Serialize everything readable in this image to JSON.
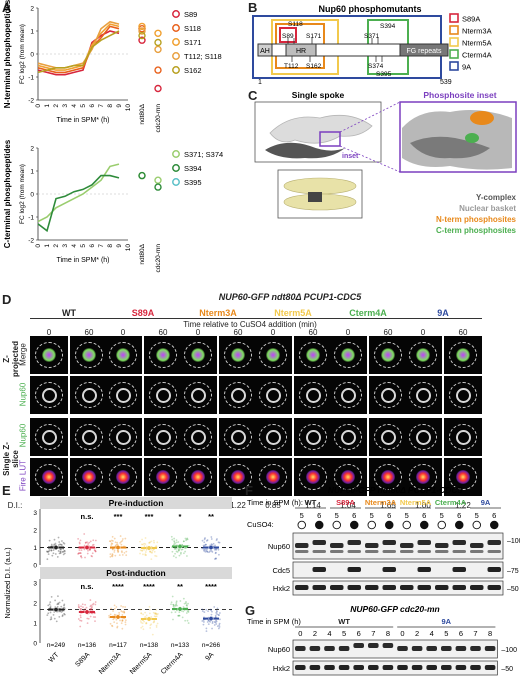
{
  "panels": {
    "A": "A",
    "B": "B",
    "C": "C",
    "D": "D",
    "E": "E",
    "F": "F",
    "G": "G"
  },
  "colors": {
    "wt": "#222222",
    "s89a": "#d7263d",
    "nterm3a": "#e8891b",
    "nterm5a": "#f2c94c",
    "cterm4a": "#4caf50",
    "a9": "#2e4a9e",
    "nuclear": "#8f8f8f"
  },
  "chart_data": [
    {
      "type": "line",
      "panel": "A-top",
      "ylabel": "FC log2 (from mean)",
      "side_label": "N-terminal phosphopeptides",
      "xlabel": "Time in SPM* (h)",
      "categories": [
        "0",
        "1",
        "2",
        "3",
        "4",
        "5",
        "6",
        "7",
        "8",
        "9",
        "10",
        "ndt80Δ",
        "cdc20-mn"
      ],
      "ylim": [
        -2,
        2
      ],
      "series": [
        {
          "name": "S89",
          "color": "#d7263d",
          "values": [
            -0.7,
            -0.8,
            -0.9,
            -0.9,
            -0.8,
            -0.7,
            0.5,
            0.8,
            1.0,
            0.9,
            null,
            0.6,
            -1.5
          ]
        },
        {
          "name": "S118",
          "color": "#e8601b",
          "values": [
            -0.6,
            -0.7,
            -0.8,
            -0.8,
            -0.7,
            -0.6,
            0.3,
            0.7,
            1.2,
            1.1,
            null,
            1.1,
            -0.7
          ]
        },
        {
          "name": "S171",
          "color": "#f0a030",
          "values": [
            -0.5,
            -0.6,
            -0.7,
            -0.7,
            -0.6,
            -0.5,
            0.4,
            0.9,
            1.3,
            1.2,
            null,
            1.2,
            0.9
          ]
        },
        {
          "name": "T112; S118",
          "color": "#e8a040",
          "values": [
            -0.4,
            -0.5,
            -0.6,
            -0.6,
            -0.5,
            -0.4,
            0.2,
            1.1,
            1.4,
            1.3,
            null,
            1.0,
            0.2
          ]
        },
        {
          "name": "S162",
          "color": "#b8a020",
          "values": [
            -0.8,
            -0.7,
            -0.6,
            -0.6,
            -0.5,
            -0.5,
            0.3,
            0.6,
            0.8,
            1.0,
            null,
            0.8,
            0.5
          ]
        }
      ]
    },
    {
      "type": "line",
      "panel": "A-bottom",
      "ylabel": "FC log2 (from mean)",
      "side_label": "C-terminal phosphopeptides",
      "xlabel": "Time in SPM* (h)",
      "categories": [
        "0",
        "1",
        "2",
        "3",
        "4",
        "5",
        "6",
        "7",
        "8",
        "9",
        "10",
        "ndt80Δ",
        "cdc20-mn"
      ],
      "ylim": [
        -2,
        2
      ],
      "series": [
        {
          "name": "S371; S374",
          "color": "#9acd6e",
          "values": [
            -1.2,
            -1.0,
            -0.6,
            -0.4,
            -0.2,
            0.0,
            0.3,
            0.6,
            1.2,
            1.3,
            null,
            0.8,
            0.6
          ]
        },
        {
          "name": "S394",
          "color": "#2e8b3a",
          "values": [
            -1.3,
            -1.6,
            -0.2,
            -0.1,
            0.1,
            0.2,
            0.4,
            0.8,
            0.8,
            0.7,
            null,
            0.8,
            0.3
          ]
        },
        {
          "name": "S395",
          "color": "#5bc0c8",
          "values": [
            null,
            null,
            null,
            null,
            null,
            null,
            null,
            null,
            null,
            null,
            null,
            null,
            null
          ]
        }
      ]
    },
    {
      "type": "scatter",
      "panel": "E",
      "ylabel": "Normalized D.I. (a.u.)",
      "categories": [
        "WT",
        "S89A",
        "Nterm3A",
        "Nterm5A",
        "Cterm4A",
        "9A"
      ],
      "ylim": [
        0,
        3.2
      ],
      "pre_induction": {
        "title": "Pre-induction",
        "medians": [
          1.0,
          1.0,
          1.0,
          0.97,
          1.06,
          1.0
        ],
        "significance": [
          "",
          "n.s.",
          "***",
          "***",
          "*",
          "**"
        ]
      },
      "post_induction": {
        "title": "Post-induction",
        "medians": [
          1.67,
          1.55,
          1.3,
          1.2,
          1.7,
          1.22
        ],
        "significance": [
          "",
          "n.s.",
          "****",
          "****",
          "**",
          "****"
        ]
      },
      "counts": [
        "n=249",
        "n=136",
        "n=117",
        "n=138",
        "n=133",
        "n=266"
      ]
    }
  ],
  "panelB": {
    "title": "Nup60 phosphomutants",
    "domains": {
      "ah": "AH",
      "hr": "HR",
      "fg": "FG repeats"
    },
    "start": "1",
    "end": "539",
    "sites_top": [
      "S118",
      "S89",
      "S171",
      "S394",
      "S371"
    ],
    "sites_bottom": [
      "T112",
      "S162",
      "S374",
      "S395"
    ],
    "legend": [
      {
        "label": "S89A",
        "color": "#d7263d"
      },
      {
        "label": "Nterm3A",
        "color": "#e8891b"
      },
      {
        "label": "Nterm5A",
        "color": "#f2c94c"
      },
      {
        "label": "Cterm4A",
        "color": "#4caf50"
      },
      {
        "label": "9A",
        "color": "#2e4a9e"
      }
    ]
  },
  "panelC": {
    "single_spoke": "Single spoke",
    "inset_title": "Phosphosite inset",
    "inset_label": "inset",
    "legend": [
      {
        "label": "Y-complex",
        "color": "#555555"
      },
      {
        "label": "Nuclear basket",
        "color": "#9a9a9a"
      },
      {
        "label": "N-term phosphosites",
        "color": "#e8891b"
      },
      {
        "label": "C-term phosphosites",
        "color": "#4caf50"
      }
    ]
  },
  "panelD": {
    "title": "NUP60-GFP ndt80Δ PCUP1-CDC5",
    "time_note": "Time relative to CuSO4 addition (min)",
    "times": [
      "0",
      "60"
    ],
    "genotypes": [
      "WT",
      "S89A",
      "Nterm3A",
      "Nterm5A",
      "Cterm4A",
      "9A"
    ],
    "row_group1": "Z-projected",
    "row_group2": "Single Z-slice",
    "row_labels": [
      "Merge",
      "Nup60",
      "Nup60",
      "Fire LUT"
    ],
    "di_label": "D.I.:",
    "di_values": [
      "1.03",
      "1.67",
      "0.92",
      "1.55",
      "0.96",
      "1.22",
      "0.85",
      "1.14",
      "1.04",
      "1.65",
      "1.00",
      "1.22"
    ]
  },
  "panelF": {
    "title": "NUP60-GFP ndt80Δ PCUP1-CDC5",
    "time_label": "Time in SPM (h):",
    "cuso4_label": "CuSO4:",
    "genotypes": [
      "WT",
      "S89A",
      "Nterm3A",
      "Nterm5A",
      "Cterm4A",
      "9A"
    ],
    "times": [
      "5",
      "6",
      "5",
      "6",
      "5",
      "6",
      "5",
      "6",
      "5",
      "6",
      "5",
      "6"
    ],
    "blots": [
      "Nup60",
      "Cdc5",
      "Hxk2"
    ],
    "markers": [
      "100",
      "75",
      "50"
    ]
  },
  "panelG": {
    "title": "NUP60-GFP cdc20-mn",
    "time_label": "Time in SPM (h)",
    "genotypes": [
      "WT",
      "9A"
    ],
    "times": [
      "0",
      "2",
      "4",
      "5",
      "6",
      "7",
      "8",
      "0",
      "2",
      "4",
      "5",
      "6",
      "7",
      "8"
    ],
    "blots": [
      "Nup60",
      "Hxk2"
    ],
    "markers": [
      "100",
      "50"
    ]
  }
}
